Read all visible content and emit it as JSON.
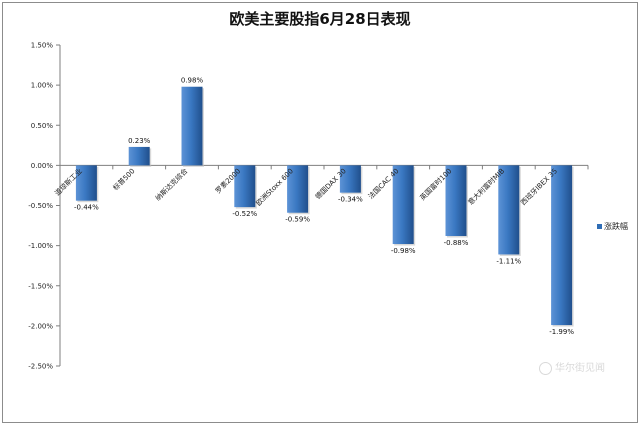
{
  "chart_data": {
    "type": "bar",
    "title": "欧美主要股指6月28日表现",
    "categories": [
      "道琼斯工业",
      "标普500",
      "纳斯达克综合",
      "罗素2000",
      "欧洲Stoxx 600",
      "德国DAX 30",
      "法国CAC 40",
      "英国富时100",
      "意大利富时MIB",
      "西班牙IBEX 35"
    ],
    "series": [
      {
        "name": "涨跌幅",
        "values": [
          -0.44,
          0.23,
          0.98,
          -0.52,
          -0.59,
          -0.34,
          -0.98,
          -0.88,
          -1.11,
          -1.99
        ],
        "labels": [
          "-0.44%",
          "0.23%",
          "0.98%",
          "-0.52%",
          "-0.59%",
          "-0.34%",
          "-0.98%",
          "-0.88%",
          "-1.11%",
          "-1.99%"
        ]
      }
    ],
    "y_ticks": [
      1.5,
      1.0,
      0.5,
      0.0,
      -0.5,
      -1.0,
      -1.5,
      -2.0,
      -2.5
    ],
    "y_tick_labels": [
      "1.50%",
      "1.00%",
      "0.50%",
      "0.00%",
      "-0.50%",
      "-1.00%",
      "-1.50%",
      "-2.00%",
      "-2.50%"
    ],
    "ylim": [
      -2.5,
      1.5
    ],
    "grid": false,
    "legend_position": "right",
    "bar_color": "#2f6db5"
  },
  "watermark": "华尔街见闻"
}
